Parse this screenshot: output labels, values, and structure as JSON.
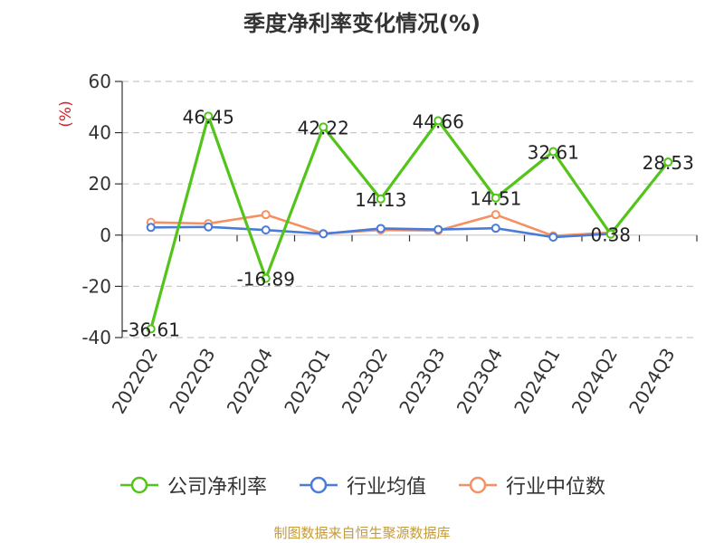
{
  "chart_data": {
    "type": "line",
    "title": "季度净利率变化情况(%)",
    "ylabel": "(%)",
    "xlabel": "",
    "categories": [
      "2022Q2",
      "2022Q3",
      "2022Q4",
      "2023Q1",
      "2023Q2",
      "2023Q3",
      "2023Q4",
      "2024Q1",
      "2024Q2",
      "2024Q3"
    ],
    "ylim": [
      -40,
      60
    ],
    "yticks": [
      "60",
      "40",
      "20",
      "0",
      "-20",
      "-40"
    ],
    "grid": true,
    "legend_position": "bottom",
    "series": [
      {
        "name": "公司净利率",
        "color": "#52c41a",
        "values": [
          -36.61,
          46.45,
          -16.89,
          42.22,
          14.13,
          44.66,
          14.51,
          32.61,
          0.38,
          28.53
        ],
        "labels": [
          "-36.61",
          "46.45",
          "-16.89",
          "42.22",
          "14.13",
          "44.66",
          "14.51",
          "32.61",
          "0.38",
          "28.53"
        ]
      },
      {
        "name": "行业均值",
        "color": "#4a7bd6",
        "values": [
          3.0,
          3.2,
          2.0,
          0.5,
          2.6,
          2.2,
          2.7,
          -0.8,
          0.5,
          null
        ]
      },
      {
        "name": "行业中位数",
        "color": "#f59062",
        "values": [
          5.0,
          4.5,
          8.0,
          0.6,
          2.0,
          1.8,
          8.0,
          -0.3,
          1.0,
          null
        ]
      }
    ]
  },
  "source": "制图数据来自恒生聚源数据库"
}
